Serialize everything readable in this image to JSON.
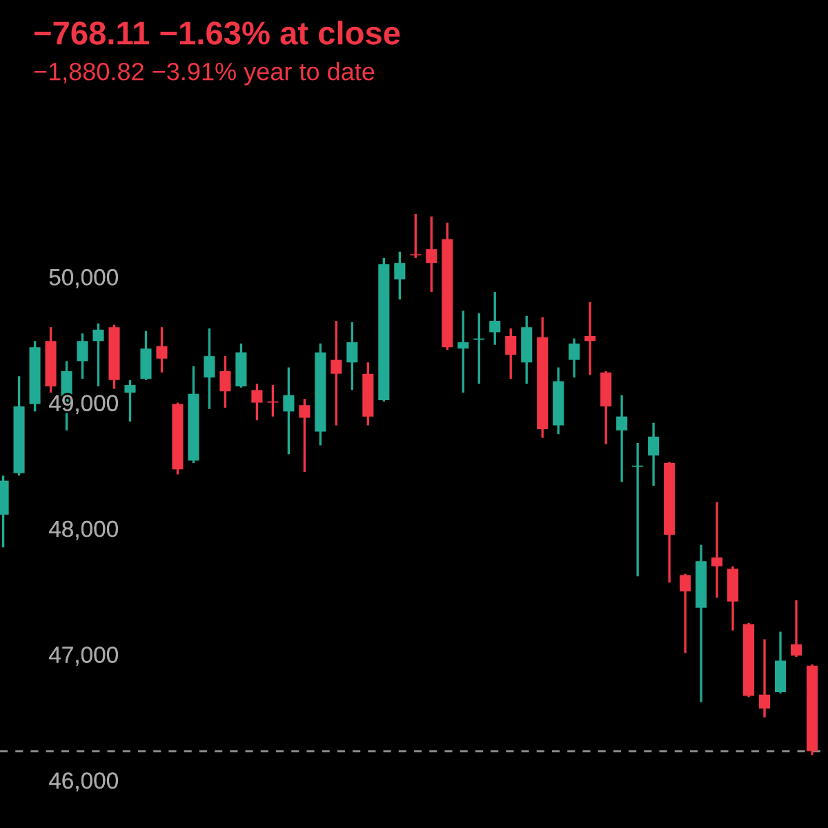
{
  "chart_data": {
    "type": "candlestick",
    "title": "−768.11 −1.63% at close",
    "subtitle": "−1,880.82 −3.91% year to date",
    "categories": [
      null,
      null,
      null,
      null,
      null,
      null,
      null,
      null,
      null,
      null,
      null,
      null,
      null,
      null,
      null,
      null,
      null,
      null,
      null,
      null,
      null,
      null,
      null,
      null,
      null,
      null,
      null,
      null,
      null,
      null,
      null,
      null,
      null,
      null,
      null,
      null,
      null,
      null,
      null,
      null,
      null,
      null,
      null,
      null,
      null,
      null,
      null,
      null,
      null,
      null,
      null,
      null
    ],
    "ohlc": [
      [
        48110,
        48420,
        47850,
        48380
      ],
      [
        48440,
        49210,
        48420,
        48970
      ],
      [
        48990,
        49490,
        48930,
        49440
      ],
      [
        49490,
        49600,
        49080,
        49130
      ],
      [
        48970,
        49330,
        48780,
        49250
      ],
      [
        49330,
        49550,
        49190,
        49490
      ],
      [
        49490,
        49630,
        49130,
        49580
      ],
      [
        49600,
        49620,
        49110,
        49180
      ],
      [
        49080,
        49180,
        48850,
        49140
      ],
      [
        49190,
        49570,
        49180,
        49430
      ],
      [
        49450,
        49600,
        49240,
        49350
      ],
      [
        48990,
        49000,
        48430,
        48470
      ],
      [
        48540,
        49290,
        48520,
        49070
      ],
      [
        49200,
        49590,
        48950,
        49370
      ],
      [
        49250,
        49370,
        48960,
        49090
      ],
      [
        49130,
        49470,
        49120,
        49400
      ],
      [
        49100,
        49150,
        48860,
        49000
      ],
      [
        49010,
        49140,
        48890,
        49000
      ],
      [
        48930,
        49280,
        48590,
        49060
      ],
      [
        48980,
        49030,
        48450,
        48880
      ],
      [
        48770,
        49470,
        48660,
        49400
      ],
      [
        49340,
        49650,
        48820,
        49230
      ],
      [
        49320,
        49640,
        49100,
        49480
      ],
      [
        49230,
        49320,
        48820,
        48890
      ],
      [
        49020,
        50150,
        49010,
        50100
      ],
      [
        49980,
        50200,
        49820,
        50110
      ],
      [
        50170,
        50500,
        50150,
        50180
      ],
      [
        50220,
        50480,
        49880,
        50110
      ],
      [
        50300,
        50430,
        49420,
        49440
      ],
      [
        49430,
        49730,
        49080,
        49480
      ],
      [
        49500,
        49710,
        49150,
        49510
      ],
      [
        49560,
        49880,
        49460,
        49650
      ],
      [
        49530,
        49590,
        49190,
        49380
      ],
      [
        49320,
        49690,
        49150,
        49600
      ],
      [
        49520,
        49680,
        48720,
        48790
      ],
      [
        48820,
        49280,
        48750,
        49170
      ],
      [
        49340,
        49510,
        49200,
        49470
      ],
      [
        49530,
        49800,
        49220,
        49490
      ],
      [
        49240,
        49250,
        48670,
        48970
      ],
      [
        48780,
        49060,
        48370,
        48890
      ],
      [
        48490,
        48680,
        47620,
        48500
      ],
      [
        48580,
        48840,
        48340,
        48730
      ],
      [
        48520,
        48530,
        47570,
        47950
      ],
      [
        47630,
        47640,
        47010,
        47500
      ],
      [
        47370,
        47870,
        46620,
        47740
      ],
      [
        47770,
        48210,
        47450,
        47700
      ],
      [
        47680,
        47700,
        47190,
        47420
      ],
      [
        47240,
        47250,
        46660,
        46670
      ],
      [
        46680,
        47120,
        46500,
        46570
      ],
      [
        46700,
        47180,
        46690,
        46950
      ],
      [
        47080,
        47430,
        46980,
        46990
      ],
      [
        46910,
        46920,
        46200,
        46230
      ]
    ],
    "colors": [
      "#22ab94",
      "#22ab94",
      "#22ab94",
      "#f23645",
      "#22ab94",
      "#22ab94",
      "#22ab94",
      "#f23645",
      "#22ab94",
      "#22ab94",
      "#f23645",
      "#f23645",
      "#22ab94",
      "#22ab94",
      "#f23645",
      "#22ab94",
      "#f23645",
      "#f23645",
      "#22ab94",
      "#f23645",
      "#22ab94",
      "#f23645",
      "#22ab94",
      "#f23645",
      "#22ab94",
      "#22ab94",
      "#f23645",
      "#f23645",
      "#f23645",
      "#22ab94",
      "#22ab94",
      "#22ab94",
      "#f23645",
      "#22ab94",
      "#f23645",
      "#22ab94",
      "#22ab94",
      "#f23645",
      "#f23645",
      "#22ab94",
      "#22ab94",
      "#22ab94",
      "#f23645",
      "#f23645",
      "#22ab94",
      "#f23645",
      "#f23645",
      "#f23645",
      "#f23645",
      "#22ab94",
      "#f23645",
      "#f23645"
    ],
    "ylim": [
      45620,
      52200
    ],
    "yticks": [
      {
        "value": 46000,
        "label": "46,000"
      },
      {
        "value": 47000,
        "label": "47,000"
      },
      {
        "value": 48000,
        "label": "48,000"
      },
      {
        "value": 49000,
        "label": "49,000"
      },
      {
        "value": 50000,
        "label": "50,000"
      }
    ],
    "tick_labels": "y",
    "grid": false,
    "ref_lines": [
      {
        "axis": "y",
        "value": 46230,
        "color": "#888888",
        "line_style": "dashed"
      }
    ]
  }
}
